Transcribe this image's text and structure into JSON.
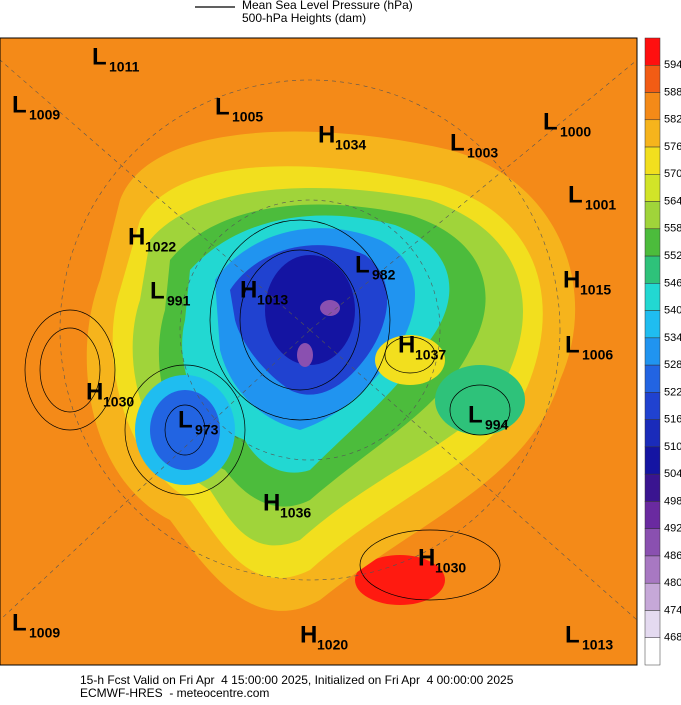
{
  "header": {
    "legend_line": "Mean Sea Level Pressure (hPa)",
    "legend_fill": "500-hPa Heights (dam)"
  },
  "colorbar": {
    "labels": [
      594,
      588,
      582,
      576,
      570,
      564,
      558,
      552,
      546,
      540,
      534,
      528,
      522,
      516,
      510,
      504,
      498,
      492,
      486,
      480,
      474,
      468
    ],
    "colors": [
      "#ff0f0f",
      "#f25c14",
      "#f48a18",
      "#f6b41c",
      "#f2df1e",
      "#d2e428",
      "#a0d43a",
      "#4cbc3c",
      "#2ec27a",
      "#22d8d2",
      "#1fbdf0",
      "#2094f0",
      "#2264e2",
      "#2042d0",
      "#1a2bba",
      "#1414a2",
      "#3a1490",
      "#6a2aa0",
      "#8a50b0",
      "#a878c2",
      "#c6a8d8",
      "#e4daf0",
      "#ffffff"
    ]
  },
  "centers": [
    {
      "kind": "L",
      "value": "1011"
    },
    {
      "kind": "L",
      "value": "1009"
    },
    {
      "kind": "L",
      "value": "1005"
    },
    {
      "kind": "H",
      "value": "1034"
    },
    {
      "kind": "L",
      "value": "1003"
    },
    {
      "kind": "L",
      "value": "1000"
    },
    {
      "kind": "L",
      "value": "1001"
    },
    {
      "kind": "H",
      "value": "1022"
    },
    {
      "kind": "L",
      "value": "991"
    },
    {
      "kind": "H",
      "value": "1013"
    },
    {
      "kind": "L",
      "value": "982"
    },
    {
      "kind": "H",
      "value": "1015"
    },
    {
      "kind": "H",
      "value": "1037"
    },
    {
      "kind": "L",
      "value": "1006"
    },
    {
      "kind": "H",
      "value": "1030"
    },
    {
      "kind": "L",
      "value": "973"
    },
    {
      "kind": "L",
      "value": "994"
    },
    {
      "kind": "H",
      "value": "1036"
    },
    {
      "kind": "H",
      "value": "1030"
    },
    {
      "kind": "L",
      "value": "1009"
    },
    {
      "kind": "H",
      "value": "1020"
    },
    {
      "kind": "L",
      "value": "1013"
    }
  ],
  "footer": {
    "line1": "15-h Fcst Valid on Fri Apr  4 15:00:00 2025, Initialized on Fri Apr  4 00:00:00 2025",
    "line2": "ECMWF-HRES  - meteocentre.com"
  }
}
